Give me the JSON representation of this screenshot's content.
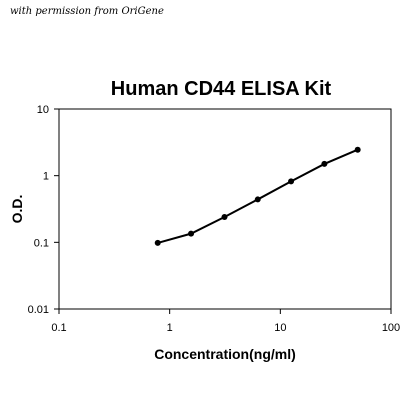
{
  "watermark": "with permission from OriGene",
  "chart_data": {
    "type": "line",
    "title": "Human CD44 ELISA Kit",
    "xlabel": "Concentration(ng/ml)",
    "ylabel": "O.D.",
    "xscale": "log",
    "yscale": "log",
    "xlim": [
      0.1,
      100
    ],
    "ylim": [
      0.01,
      10
    ],
    "xticks": [
      "0.1",
      "1",
      "10",
      "100"
    ],
    "yticks": [
      "0.01",
      "0.1",
      "1",
      "10"
    ],
    "grid": false,
    "legend": "none",
    "series": [
      {
        "x": [
          0.78,
          1.56,
          3.13,
          6.25,
          12.5,
          25,
          50
        ],
        "y": [
          0.098,
          0.135,
          0.24,
          0.44,
          0.82,
          1.5,
          2.45
        ]
      }
    ],
    "colors": {
      "line": "#000000",
      "marker": "#000000"
    }
  }
}
